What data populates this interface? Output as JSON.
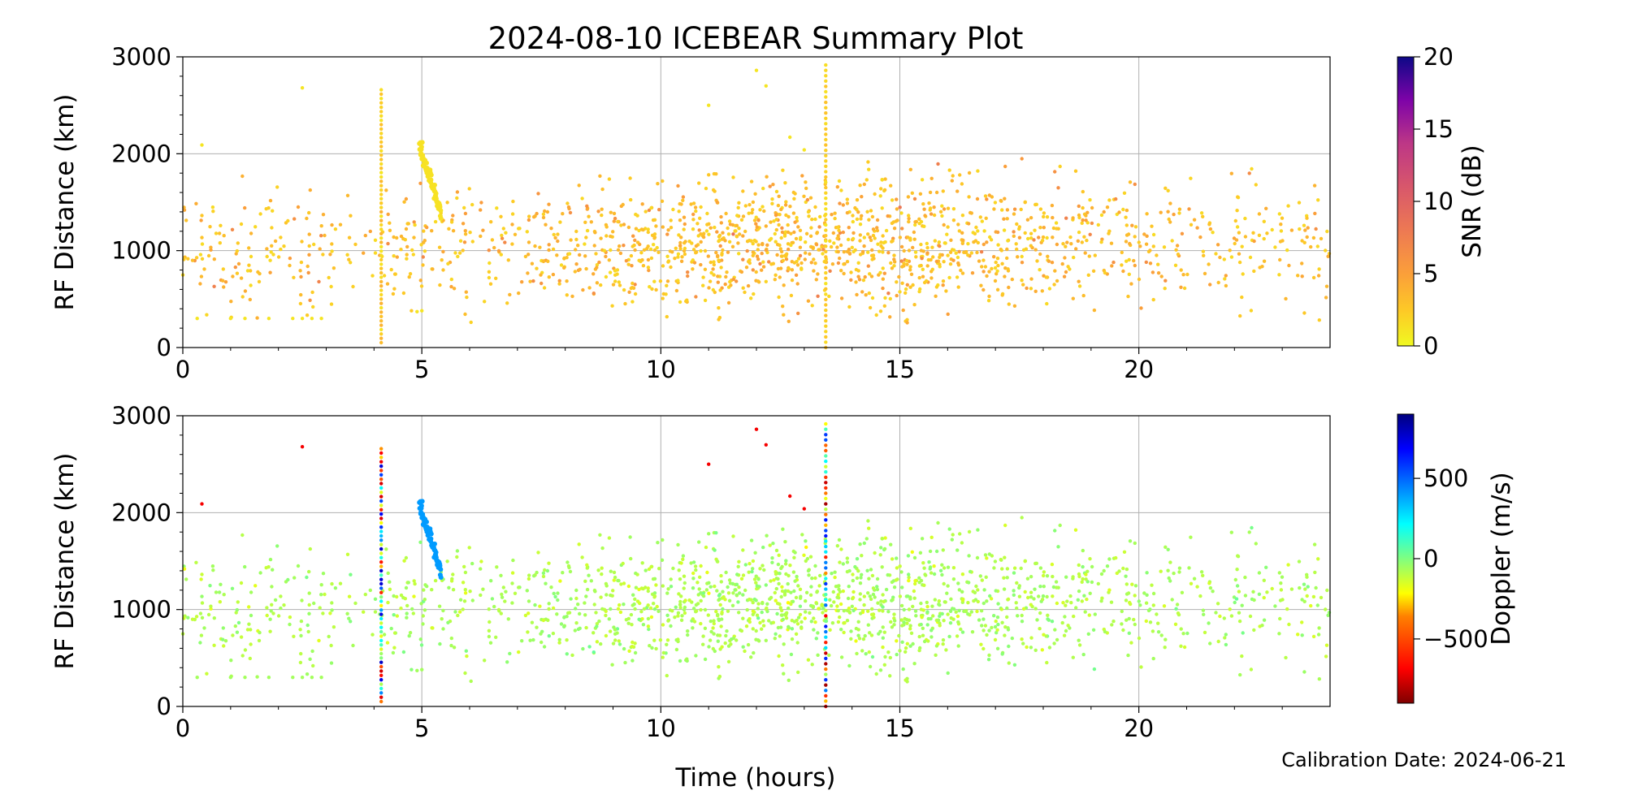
{
  "figure": {
    "title": "2024-08-10 ICEBEAR Summary Plot",
    "xlabel": "Time (hours)",
    "calibration_note": "Calibration Date: 2024-06-21"
  },
  "chart_data": [
    {
      "type": "scatter",
      "panel": "top",
      "xlabel": "",
      "ylabel": "RF Distance (km)",
      "xlim": [
        0,
        24
      ],
      "ylim": [
        0,
        3000
      ],
      "xticks": [
        0,
        5,
        10,
        15,
        20
      ],
      "yticks": [
        0,
        1000,
        2000,
        3000
      ],
      "grid": true,
      "color_variable": "SNR",
      "colorbar": {
        "label": "SNR (dB)",
        "range": [
          0,
          20
        ],
        "ticks": [
          0,
          5,
          10,
          15,
          20
        ],
        "colormap": "plasma_r"
      },
      "features": [
        {
          "description_time_hours": [
            0,
            24
          ],
          "rf_distance_km": [
            300,
            2000
          ],
          "typical_snr_db": 2
        },
        {
          "time_hours": 4.15,
          "rf_distance_km": [
            50,
            2700
          ],
          "typical_snr_db": 1
        },
        {
          "time_hours": [
            4.95,
            5.4
          ],
          "rf_distance_km": [
            1400,
            2080
          ],
          "typical_snr_db": 2
        },
        {
          "time_hours": 13.45,
          "rf_distance_km": [
            0,
            2950
          ],
          "typical_snr_db": 1
        }
      ]
    },
    {
      "type": "scatter",
      "panel": "bottom",
      "xlabel": "Time (hours)",
      "ylabel": "RF Distance (km)",
      "xlim": [
        0,
        24
      ],
      "ylim": [
        0,
        3000
      ],
      "xticks": [
        0,
        5,
        10,
        15,
        20
      ],
      "yticks": [
        0,
        1000,
        2000,
        3000
      ],
      "grid": true,
      "color_variable": "Doppler",
      "colorbar": {
        "label": "Doppler (m/s)",
        "range": [
          -900,
          900
        ],
        "ticks": [
          -500,
          0,
          500
        ],
        "colormap": "jet_r"
      },
      "features": [
        {
          "time_hours": [
            0,
            24
          ],
          "rf_distance_km": [
            300,
            2000
          ],
          "typical_doppler_ms": -100
        },
        {
          "time_hours": [
            4.95,
            5.4
          ],
          "rf_distance_km": [
            1400,
            2080
          ],
          "typical_doppler_ms": 400
        },
        {
          "time_hours": 4.15,
          "rf_distance_km": [
            50,
            2700
          ],
          "typical_doppler_ms": "mixed"
        },
        {
          "time_hours": 13.45,
          "rf_distance_km": [
            0,
            2950
          ],
          "typical_doppler_ms": "mixed"
        }
      ]
    }
  ]
}
